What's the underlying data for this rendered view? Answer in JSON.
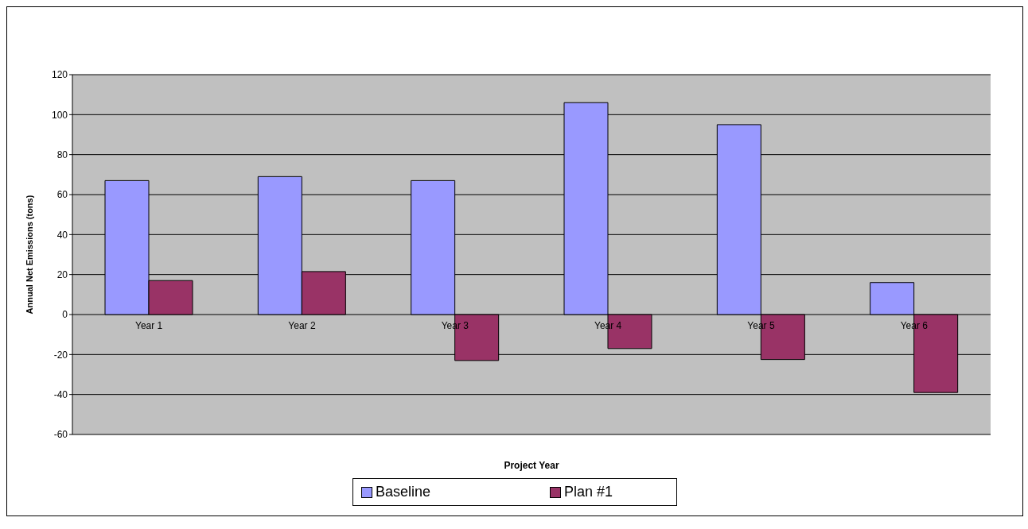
{
  "chart_data": {
    "type": "bar",
    "xlabel": "Project Year",
    "ylabel": "Annual Net Emissions (tons)",
    "categories": [
      "Year 1",
      "Year 2",
      "Year 3",
      "Year 4",
      "Year 5",
      "Year 6"
    ],
    "series": [
      {
        "name": "Baseline",
        "color": "#9999ff",
        "values": [
          67,
          69,
          67,
          106,
          95,
          16
        ]
      },
      {
        "name": "Plan #1",
        "color": "#993366",
        "values": [
          17,
          21.5,
          -23,
          -17,
          -22.5,
          -39
        ]
      }
    ],
    "ylim": [
      -60,
      120
    ],
    "yticks": [
      -60,
      -40,
      -20,
      0,
      20,
      40,
      60,
      80,
      100,
      120
    ],
    "grid": "y",
    "legend": "bottom"
  }
}
